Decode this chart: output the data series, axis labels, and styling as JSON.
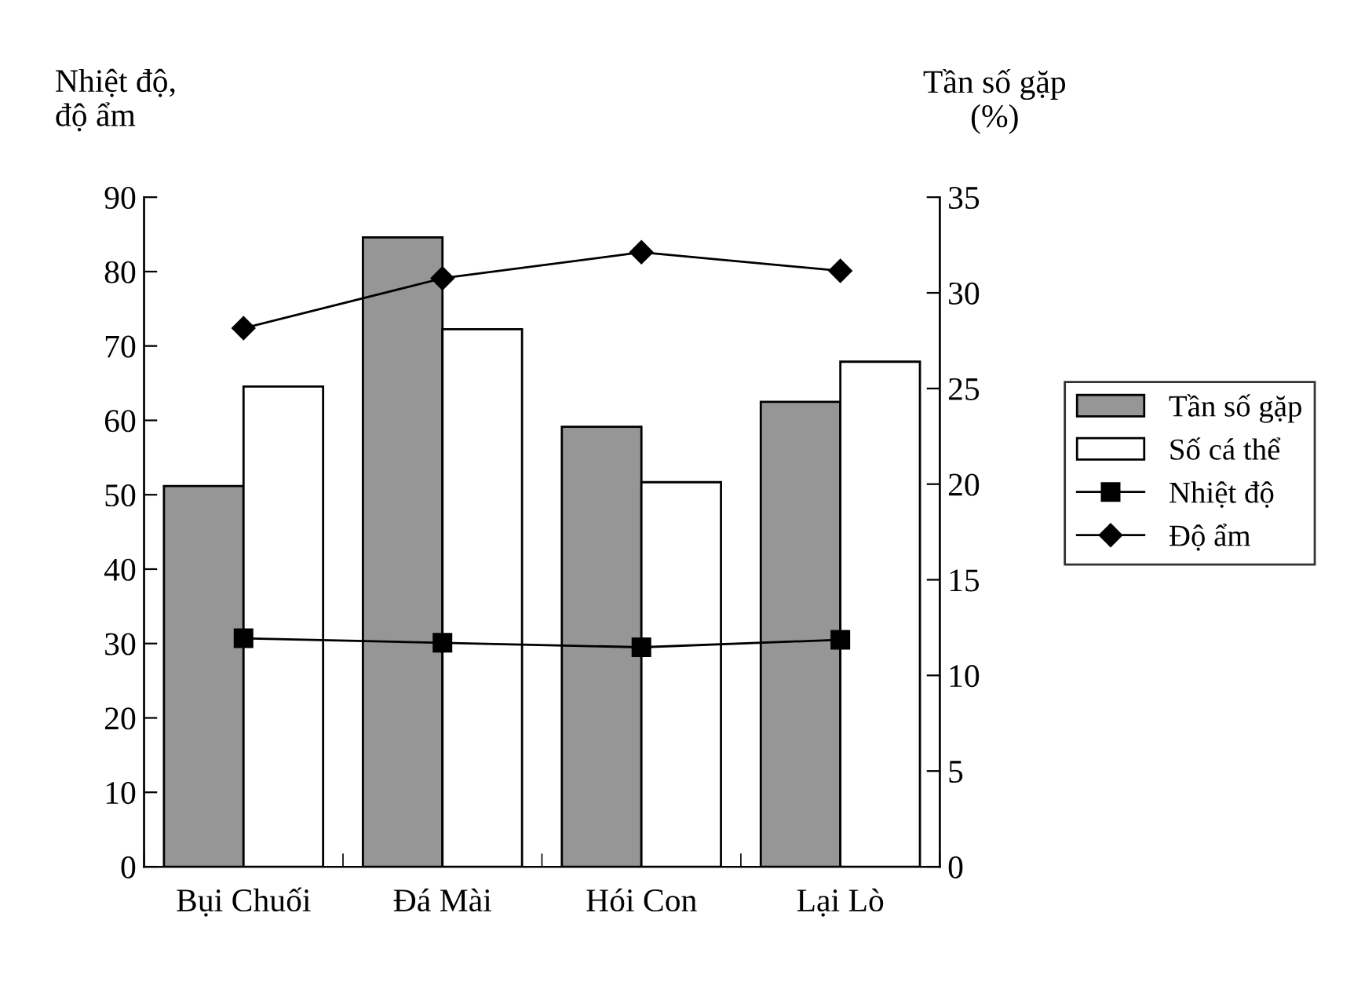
{
  "chart_data": {
    "type": "bar",
    "categories": [
      "Bụi Chuối",
      "Đá Mài",
      "Hói Con",
      "Lại Lò"
    ],
    "ylabel": "Nhiệt độ,\nđộ ẩm",
    "y2label": "Tần số gặp\n(%)",
    "ylim": [
      0,
      90
    ],
    "yticks": [
      0,
      10,
      20,
      30,
      40,
      50,
      60,
      70,
      80,
      90
    ],
    "y2lim": [
      0,
      35
    ],
    "y2ticks": [
      0,
      5,
      10,
      15,
      20,
      25,
      30,
      35
    ],
    "grid": false,
    "legend": "right",
    "series": [
      {
        "name": "Tần số gặp",
        "axis": "y2",
        "color": "#969696",
        "values": [
          19.9,
          32.9,
          23.0,
          24.3
        ]
      },
      {
        "name": "Số cá thể",
        "axis": "y2",
        "color": "#ffffff",
        "values": [
          25.1,
          28.1,
          20.1,
          26.4
        ]
      },
      {
        "name": "Nhiệt độ",
        "type": "line",
        "color": "#000000",
        "marker": "square",
        "values": [
          30.7,
          30.1,
          29.5,
          30.5
        ]
      },
      {
        "name": "Độ ẩm",
        "type": "line",
        "color": "#000000",
        "marker": "diamond",
        "values": [
          72.4,
          79.1,
          82.6,
          80.1
        ]
      }
    ]
  }
}
